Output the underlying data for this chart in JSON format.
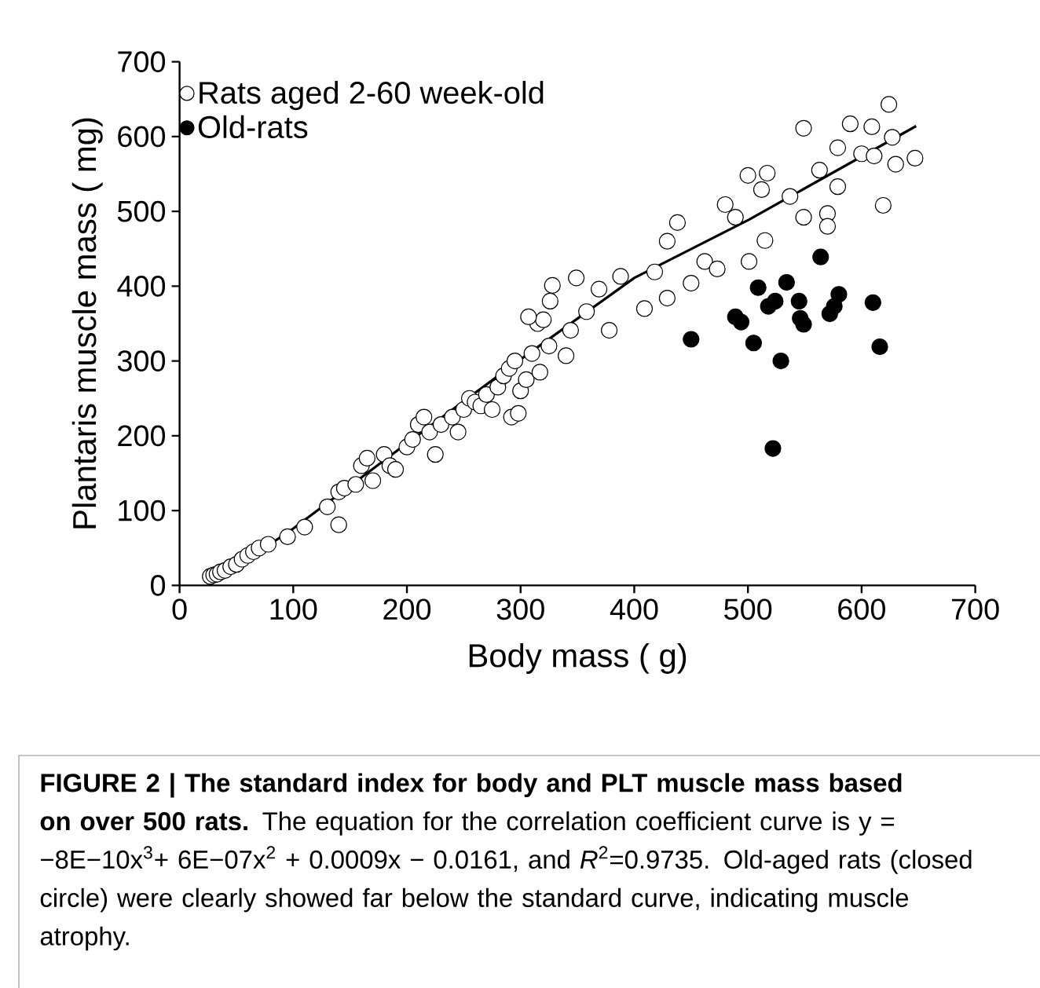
{
  "chart_data": {
    "type": "scatter",
    "xlabel": "Body mass  ( g)",
    "ylabel": "Plantaris muscle mass  ( mg)",
    "xlim": [
      0,
      700
    ],
    "ylim": [
      0,
      700
    ],
    "xticks": [
      0,
      100,
      200,
      300,
      400,
      500,
      600,
      700
    ],
    "yticks": [
      0,
      100,
      200,
      300,
      400,
      500,
      600,
      700
    ],
    "grid": false,
    "legend": "top left",
    "marker": "circle",
    "series": [
      {
        "name": "Rats aged 2-60 week-old",
        "color": "#ffffff",
        "x": [
          27,
          30,
          33,
          36,
          40,
          45,
          50,
          55,
          60,
          65,
          70,
          78,
          95,
          110,
          130,
          140,
          140,
          145,
          155,
          160,
          165,
          170,
          180,
          185,
          190,
          200,
          205,
          210,
          215,
          220,
          225,
          230,
          240,
          245,
          250,
          255,
          260,
          265,
          270,
          275,
          280,
          285,
          290,
          295,
          292,
          298,
          300,
          305,
          310,
          315,
          320,
          325,
          326,
          328,
          349,
          307,
          317,
          340,
          344,
          358,
          369,
          378,
          388,
          409,
          418,
          429,
          429,
          438,
          450,
          462,
          473,
          480,
          489,
          501,
          515,
          500,
          517,
          512,
          537,
          549,
          549,
          563,
          570,
          570,
          579,
          579,
          590,
          600,
          609,
          611,
          619,
          624,
          630,
          647,
          627
        ],
        "values": [
          12,
          14,
          15,
          18,
          20,
          25,
          28,
          35,
          40,
          45,
          50,
          55,
          65,
          78,
          105,
          81,
          125,
          130,
          135,
          160,
          170,
          140,
          175,
          160,
          155,
          185,
          195,
          215,
          225,
          205,
          175,
          215,
          225,
          205,
          235,
          250,
          245,
          240,
          255,
          235,
          265,
          280,
          290,
          300,
          225,
          230,
          260,
          275,
          310,
          350,
          355,
          320,
          380,
          401,
          411,
          359,
          285,
          307,
          341,
          366,
          396,
          341,
          413,
          370,
          419,
          384,
          460,
          485,
          404,
          433,
          423,
          509,
          492,
          433,
          461,
          548,
          551,
          529,
          520,
          611,
          492,
          555,
          497,
          480,
          533,
          585,
          617,
          577,
          613,
          574,
          508,
          643,
          563,
          571,
          599
        ]
      },
      {
        "name": "Old-rats",
        "color": "#000000",
        "x": [
          450,
          489,
          494,
          505,
          509,
          518,
          524,
          529,
          522,
          534,
          545,
          546,
          549,
          564,
          572,
          576,
          580,
          610,
          616
        ],
        "values": [
          329,
          359,
          352,
          324,
          398,
          373,
          380,
          300,
          183,
          405,
          380,
          357,
          349,
          439,
          363,
          373,
          389,
          378,
          319
        ]
      },
      {
        "type": "line",
        "color": "#000000",
        "marker": "none",
        "line_style": "solid",
        "x": [
          26,
          100,
          200,
          298,
          400,
          501,
          648
        ],
        "values": [
          0,
          76,
          190,
          300,
          411,
          489,
          614
        ]
      }
    ],
    "annotations": [
      "**FIGURE 2 | The standard index for body and PLT muscle mass based on over 500 rats.** The equation for the correlation coefficient curve is y = −8E−10x$^{3}$+ 6E−07x$^{2}$ + 0.0009x − 0.0161, and *R*$^{2}$=0.9735. Old-aged rats (closed circle) were clearly showed far below the standard curve, indicating muscle atrophy."
    ]
  }
}
